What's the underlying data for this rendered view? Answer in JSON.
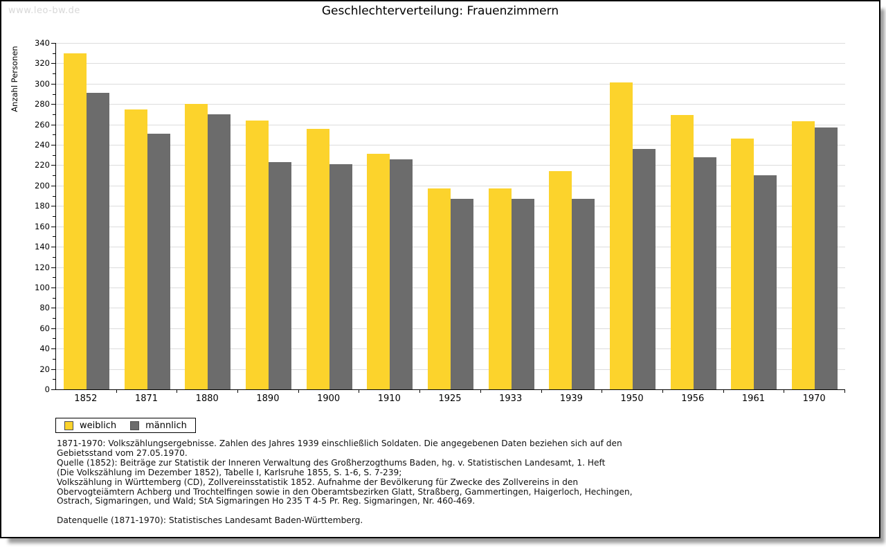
{
  "watermark": "www.leo-bw.de",
  "title": "Geschlechterverteilung: Frauenzimmern",
  "chart_data": {
    "type": "bar",
    "title": "Geschlechterverteilung: Frauenzimmern",
    "xlabel": "",
    "ylabel": "Anzahl Personen",
    "categories": [
      "1852",
      "1871",
      "1880",
      "1890",
      "1900",
      "1910",
      "1925",
      "1933",
      "1939",
      "1950",
      "1956",
      "1961",
      "1970"
    ],
    "series": [
      {
        "name": "weiblich",
        "color": "#FCD32C",
        "values": [
          330,
          275,
          280,
          264,
          256,
          231,
          197,
          197,
          214,
          301,
          269,
          246,
          263
        ]
      },
      {
        "name": "männlich",
        "color": "#6C6C6C",
        "values": [
          291,
          251,
          270,
          223,
          221,
          226,
          187,
          187,
          187,
          236,
          228,
          210,
          257
        ]
      }
    ],
    "ylim": [
      0,
      340
    ],
    "ytick_step": 20,
    "yminortick_step": 10,
    "grid": true,
    "gridline_color": "#dcdcdc",
    "legend_position": "bottom-left"
  },
  "footer": {
    "lines": [
      "1871-1970: Volkszählungsergebnisse. Zahlen des Jahres 1939 einschließlich Soldaten. Die angegebenen Daten beziehen sich auf den",
      "Gebietsstand vom 27.05.1970.",
      "Quelle (1852): Beiträge zur Statistik der Inneren Verwaltung des Großherzogthums Baden, hg. v. Statistischen Landesamt, 1. Heft",
      "(Die Volkszählung im Dezember 1852), Tabelle I, Karlsruhe 1855, S. 1-6, S. 7-239;",
      "Volkszählung in Württemberg (CD), Zollvereinsstatistik 1852. Aufnahme der Bevölkerung für Zwecke des Zollvereins in den",
      "Obervogteiämtern Achberg und Trochtelfingen sowie in den Oberamtsbezirken Glatt, Straßberg, Gammertingen, Haigerloch, Hechingen,",
      "Ostrach, Sigmaringen, und Wald; StA Sigmaringen Ho 235 T 4-5 Pr. Reg. Sigmaringen, Nr. 460-469.",
      "",
      "Datenquelle (1871-1970): Statistisches Landesamt Baden-Württemberg."
    ]
  }
}
